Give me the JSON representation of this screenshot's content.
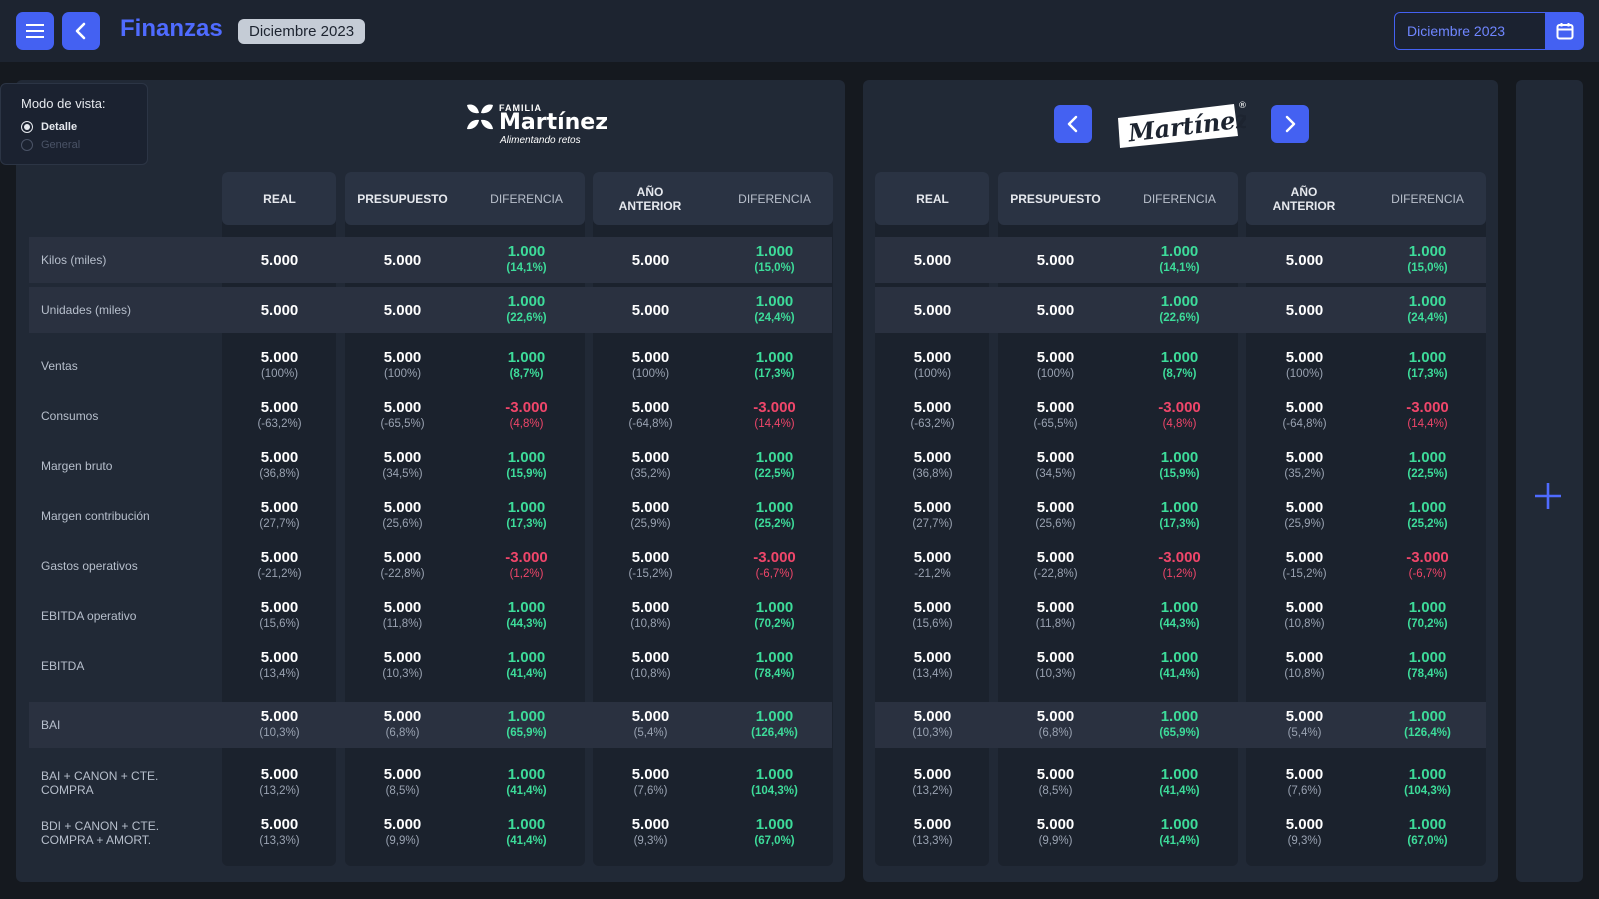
{
  "app": {
    "title": "Finanzas",
    "period_badge": "Diciembre 2023"
  },
  "date_picker": {
    "value": "Diciembre 2023"
  },
  "view_mode": {
    "title": "Modo de vista:",
    "options": [
      "Detalle",
      "General"
    ],
    "selected": "Detalle"
  },
  "brands": {
    "left": {
      "top": "FAMILIA",
      "name": "Martínez",
      "tagline": "Alimentando retos"
    },
    "right": {
      "name": "Martínez",
      "mark": "®"
    }
  },
  "headers": [
    "REAL",
    "PRESUPUESTO",
    "DIFERENCIA",
    "AÑO ANTERIOR",
    "DIFERENCIA"
  ],
  "colors": {
    "accent": "#4461f2",
    "positive": "#3ddc9a",
    "negative": "#f0466a"
  },
  "icons": [
    "menu-icon",
    "back-icon",
    "calendar-icon",
    "chevron-left-icon",
    "chevron-right-icon",
    "plus-icon"
  ],
  "rows": [
    {
      "label": "Kilos (miles)",
      "band": true,
      "cells": [
        [
          "5.000",
          ""
        ],
        [
          "5.000",
          ""
        ],
        [
          "1.000",
          "(14,1%)"
        ],
        [
          "5.000",
          ""
        ],
        [
          "1.000",
          "(15,0%)"
        ]
      ],
      "right": [
        [
          "5.000",
          ""
        ],
        [
          "5.000",
          ""
        ],
        [
          "1.000",
          "(14,1%)"
        ],
        [
          "5.000",
          ""
        ],
        [
          "1.000",
          "(15,0%)"
        ]
      ],
      "signs": [
        "",
        "g",
        "",
        "g"
      ]
    },
    {
      "label": "Unidades (miles)",
      "band": true,
      "cells": [
        [
          "5.000",
          ""
        ],
        [
          "5.000",
          ""
        ],
        [
          "1.000",
          "(22,6%)"
        ],
        [
          "5.000",
          ""
        ],
        [
          "1.000",
          "(24,4%)"
        ]
      ],
      "right": [
        [
          "5.000",
          ""
        ],
        [
          "5.000",
          ""
        ],
        [
          "1.000",
          "(22,6%)"
        ],
        [
          "5.000",
          ""
        ],
        [
          "1.000",
          "(24,4%)"
        ]
      ],
      "signs": [
        "",
        "g",
        "",
        "g"
      ]
    },
    {
      "label": "Ventas",
      "band": false,
      "cells": [
        [
          "5.000",
          "(100%)"
        ],
        [
          "5.000",
          "(100%)"
        ],
        [
          "1.000",
          "(8,7%)"
        ],
        [
          "5.000",
          "(100%)"
        ],
        [
          "1.000",
          "(17,3%)"
        ]
      ],
      "right": [
        [
          "5.000",
          "(100%)"
        ],
        [
          "5.000",
          "(100%)"
        ],
        [
          "1.000",
          "(8,7%)"
        ],
        [
          "5.000",
          "(100%)"
        ],
        [
          "1.000",
          "(17,3%)"
        ]
      ],
      "signs": [
        "",
        "g",
        "",
        "g"
      ]
    },
    {
      "label": "Consumos",
      "band": false,
      "cells": [
        [
          "5.000",
          "(-63,2%)"
        ],
        [
          "5.000",
          "(-65,5%)"
        ],
        [
          "-3.000",
          "(4,8%)"
        ],
        [
          "5.000",
          "(-64,8%)"
        ],
        [
          "-3.000",
          "(14,4%)"
        ]
      ],
      "right": [
        [
          "5.000",
          "(-63,2%)"
        ],
        [
          "5.000",
          "(-65,5%)"
        ],
        [
          "-3.000",
          "(4,8%)"
        ],
        [
          "5.000",
          "(-64,8%)"
        ],
        [
          "-3.000",
          "(14,4%)"
        ]
      ],
      "signs": [
        "",
        "r",
        "",
        "r"
      ]
    },
    {
      "label": "Margen bruto",
      "band": false,
      "cells": [
        [
          "5.000",
          "(36,8%)"
        ],
        [
          "5.000",
          "(34,5%)"
        ],
        [
          "1.000",
          "(15,9%)"
        ],
        [
          "5.000",
          "(35,2%)"
        ],
        [
          "1.000",
          "(22,5%)"
        ]
      ],
      "right": [
        [
          "5.000",
          "(36,8%)"
        ],
        [
          "5.000",
          "(34,5%)"
        ],
        [
          "1.000",
          "(15,9%)"
        ],
        [
          "5.000",
          "(35,2%)"
        ],
        [
          "1.000",
          "(22,5%)"
        ]
      ],
      "signs": [
        "",
        "g",
        "",
        "g"
      ]
    },
    {
      "label": "Margen contribución",
      "band": false,
      "cells": [
        [
          "5.000",
          "(27,7%)"
        ],
        [
          "5.000",
          "(25,6%)"
        ],
        [
          "1.000",
          "(17,3%)"
        ],
        [
          "5.000",
          "(25,9%)"
        ],
        [
          "1.000",
          "(25,2%)"
        ]
      ],
      "right": [
        [
          "5.000",
          "(27,7%)"
        ],
        [
          "5.000",
          "(25,6%)"
        ],
        [
          "1.000",
          "(17,3%)"
        ],
        [
          "5.000",
          "(25,9%)"
        ],
        [
          "1.000",
          "(25,2%)"
        ]
      ],
      "signs": [
        "",
        "g",
        "",
        "g"
      ]
    },
    {
      "label": "Gastos operativos",
      "band": false,
      "cells": [
        [
          "5.000",
          "(-21,2%)"
        ],
        [
          "5.000",
          "(-22,8%)"
        ],
        [
          "-3.000",
          "(1,2%)"
        ],
        [
          "5.000",
          "(-15,2%)"
        ],
        [
          "-3.000",
          "(-6,7%)"
        ]
      ],
      "right": [
        [
          "5.000",
          "-21,2%"
        ],
        [
          "5.000",
          "(-22,8%)"
        ],
        [
          "-3.000",
          "(1,2%)"
        ],
        [
          "5.000",
          "(-15,2%)"
        ],
        [
          "-3.000",
          "(-6,7%)"
        ]
      ],
      "signs": [
        "",
        "r",
        "",
        "r"
      ]
    },
    {
      "label": "EBITDA operativo",
      "band": false,
      "cells": [
        [
          "5.000",
          "(15,6%)"
        ],
        [
          "5.000",
          "(11,8%)"
        ],
        [
          "1.000",
          "(44,3%)"
        ],
        [
          "5.000",
          "(10,8%)"
        ],
        [
          "1.000",
          "(70,2%)"
        ]
      ],
      "right": [
        [
          "5.000",
          "(15,6%)"
        ],
        [
          "5.000",
          "(11,8%)"
        ],
        [
          "1.000",
          "(44,3%)"
        ],
        [
          "5.000",
          "(10,8%)"
        ],
        [
          "1.000",
          "(70,2%)"
        ]
      ],
      "signs": [
        "",
        "g",
        "",
        "g"
      ]
    },
    {
      "label": "EBITDA",
      "band": false,
      "cells": [
        [
          "5.000",
          "(13,4%)"
        ],
        [
          "5.000",
          "(10,3%)"
        ],
        [
          "1.000",
          "(41,4%)"
        ],
        [
          "5.000",
          "(10,8%)"
        ],
        [
          "1.000",
          "(78,4%)"
        ]
      ],
      "right": [
        [
          "5.000",
          "(13,4%)"
        ],
        [
          "5.000",
          "(10,3%)"
        ],
        [
          "1.000",
          "(41,4%)"
        ],
        [
          "5.000",
          "(10,8%)"
        ],
        [
          "1.000",
          "(78,4%)"
        ]
      ],
      "signs": [
        "",
        "g",
        "",
        "g"
      ]
    },
    {
      "label": "BAI",
      "band": true,
      "cells": [
        [
          "5.000",
          "(10,3%)"
        ],
        [
          "5.000",
          "(6,8%)"
        ],
        [
          "1.000",
          "(65,9%)"
        ],
        [
          "5.000",
          "(5,4%)"
        ],
        [
          "1.000",
          "(126,4%)"
        ]
      ],
      "right": [
        [
          "5.000",
          "(10,3%)"
        ],
        [
          "5.000",
          "(6,8%)"
        ],
        [
          "1.000",
          "(65,9%)"
        ],
        [
          "5.000",
          "(5,4%)"
        ],
        [
          "1.000",
          "(126,4%)"
        ]
      ],
      "signs": [
        "",
        "g",
        "",
        "g"
      ]
    },
    {
      "label": "BAI + CANON + CTE. COMPRA",
      "band": false,
      "cells": [
        [
          "5.000",
          "(13,2%)"
        ],
        [
          "5.000",
          "(8,5%)"
        ],
        [
          "1.000",
          "(41,4%)"
        ],
        [
          "5.000",
          "(7,6%)"
        ],
        [
          "1.000",
          "(104,3%)"
        ]
      ],
      "right": [
        [
          "5.000",
          "(13,2%)"
        ],
        [
          "5.000",
          "(8,5%)"
        ],
        [
          "1.000",
          "(41,4%)"
        ],
        [
          "5.000",
          "(7,6%)"
        ],
        [
          "1.000",
          "(104,3%)"
        ]
      ],
      "signs": [
        "",
        "g",
        "",
        "g"
      ]
    },
    {
      "label": "BDI + CANON + CTE. COMPRA + AMORT.",
      "band": false,
      "cells": [
        [
          "5.000",
          "(13,3%)"
        ],
        [
          "5.000",
          "(9,9%)"
        ],
        [
          "1.000",
          "(41,4%)"
        ],
        [
          "5.000",
          "(9,3%)"
        ],
        [
          "1.000",
          "(67,0%)"
        ]
      ],
      "right": [
        [
          "5.000",
          "(13,3%)"
        ],
        [
          "5.000",
          "(9,9%)"
        ],
        [
          "1.000",
          "(41,4%)"
        ],
        [
          "5.000",
          "(9,3%)"
        ],
        [
          "1.000",
          "(67,0%)"
        ]
      ],
      "signs": [
        "",
        "g",
        "",
        "g"
      ]
    }
  ]
}
